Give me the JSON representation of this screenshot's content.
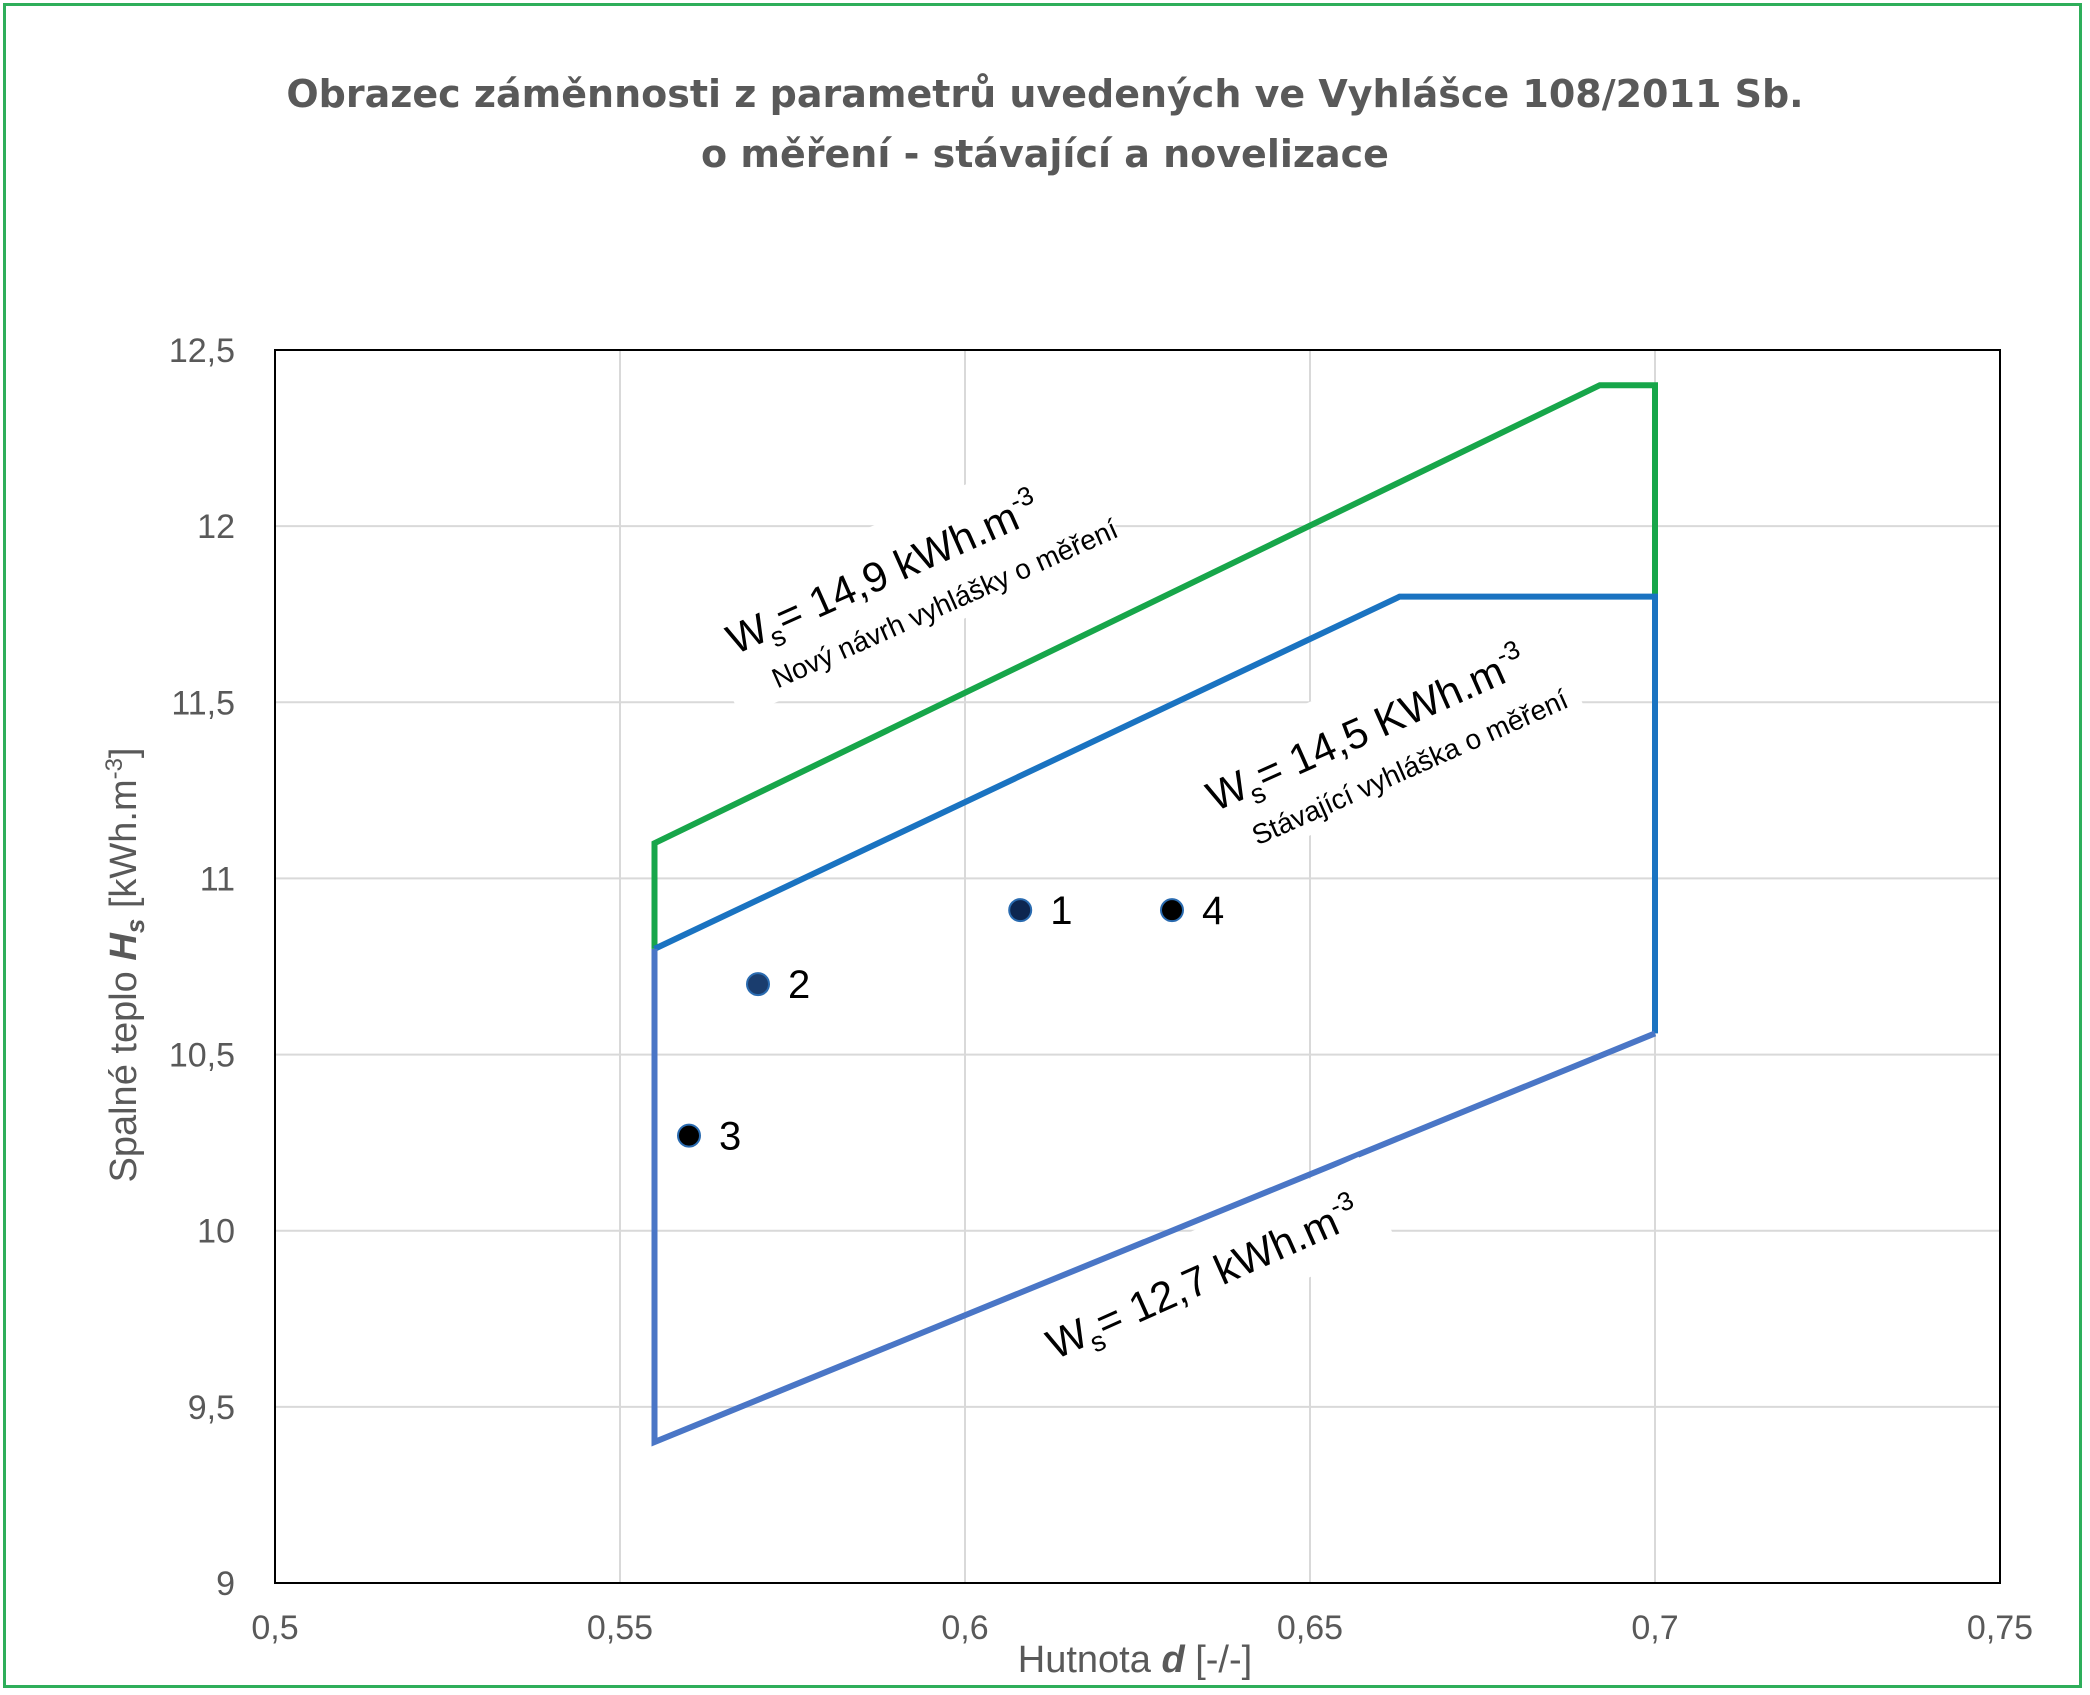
{
  "chart_data": {
    "type": "line",
    "title_line1": "Obrazec záměnnosti z parametrů uvedených ve Vyhlášce 108/2011 Sb.",
    "title_line2": "o měření - stávající a novelizace",
    "xlabel_prefix": "Hutnota ",
    "xlabel_var": "d",
    "xlabel_suffix": " [-/-]",
    "ylabel_prefix": "Spalné teplo ",
    "ylabel_var": "H",
    "ylabel_sub": "s",
    "ylabel_suffix": " [kWh.m",
    "ylabel_sup": "-3",
    "ylabel_end": "]",
    "xlim": [
      0.5,
      0.75
    ],
    "ylim": [
      9,
      12.5
    ],
    "x_ticks": [
      0.5,
      0.55,
      0.6,
      0.65,
      0.7,
      0.75
    ],
    "x_tick_labels": [
      "0,5",
      "0,55",
      "0,6",
      "0,65",
      "0,7",
      "0,75"
    ],
    "y_ticks": [
      9,
      9.5,
      10,
      10.5,
      11,
      11.5,
      12,
      12.5
    ],
    "y_tick_labels": [
      "9",
      "9,5",
      "10",
      "10,5",
      "11",
      "11,5",
      "12",
      "12,5"
    ],
    "grid": true,
    "series": [
      {
        "name": "Ws = 14,9 kWh.m-3 (nový návrh)",
        "color": "#17a64a",
        "x": [
          0.555,
          0.555,
          0.692,
          0.7,
          0.7
        ],
        "y": [
          10.8,
          11.1,
          12.4,
          12.4,
          11.8
        ]
      },
      {
        "name": "Ws = 14,5 kWh.m-3 (stávající)",
        "color": "#1a73c1",
        "x": [
          0.555,
          0.663,
          0.7,
          0.7
        ],
        "y": [
          10.8,
          11.8,
          11.8,
          10.56
        ]
      },
      {
        "name": "Ws = 12,7 kWh.m-3",
        "color": "#4a76c6",
        "x": [
          0.555,
          0.555,
          0.7
        ],
        "y": [
          10.8,
          9.4,
          10.56
        ]
      }
    ],
    "points": [
      {
        "label": "1",
        "x": 0.608,
        "y": 10.91,
        "fill": "#0d2650"
      },
      {
        "label": "2",
        "x": 0.57,
        "y": 10.7,
        "fill": "#1a3d6e"
      },
      {
        "label": "3",
        "x": 0.56,
        "y": 10.27,
        "fill": "#000000"
      },
      {
        "label": "4",
        "x": 0.63,
        "y": 10.91,
        "fill": "#000000"
      }
    ],
    "annotations": [
      {
        "id": "a1",
        "w": "W",
        "sub": "s",
        "text": "= 14,9 kWh.m",
        "sup": "-3",
        "note": "Nový návrh vyhlášky o měření"
      },
      {
        "id": "a2",
        "w": "W",
        "sub": "s",
        "text": "= 14,5 KWh.m",
        "sup": "-3",
        "note": "Stávající vyhláška o měření"
      },
      {
        "id": "a3",
        "w": "W",
        "sub": "s",
        "text": "= 12,7 kWh.m",
        "sup": "-3",
        "note": ""
      }
    ]
  }
}
